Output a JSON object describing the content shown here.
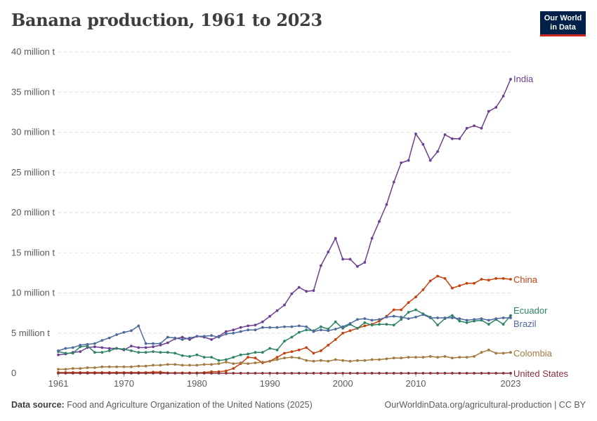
{
  "header": {
    "title": "Banana production, 1961 to 2023",
    "logo_line1": "Our World",
    "logo_line2": "in Data"
  },
  "footer": {
    "source_label": "Data source:",
    "source_text": "Food and Agriculture Organization of the United Nations (2025)",
    "url_text": "OurWorldinData.org/agricultural-production | CC BY"
  },
  "chart_data": {
    "type": "line",
    "title": "Banana production, 1961 to 2023",
    "xlim": [
      1961,
      2023
    ],
    "ylim": [
      0,
      40
    ],
    "y_unit": "million t",
    "y_ticks": [
      {
        "value": 0,
        "label": "0"
      },
      {
        "value": 5,
        "label": "5 million t"
      },
      {
        "value": 10,
        "label": "10 million t"
      },
      {
        "value": 15,
        "label": "15 million t"
      },
      {
        "value": 20,
        "label": "20 million t"
      },
      {
        "value": 25,
        "label": "25 million t"
      },
      {
        "value": 30,
        "label": "30 million t"
      },
      {
        "value": 35,
        "label": "35 million t"
      },
      {
        "value": 40,
        "label": "40 million t"
      }
    ],
    "x_ticks": [
      {
        "value": 1961,
        "label": "1961"
      },
      {
        "value": 1970,
        "label": "1970"
      },
      {
        "value": 1980,
        "label": "1980"
      },
      {
        "value": 1990,
        "label": "1990"
      },
      {
        "value": 2000,
        "label": "2000"
      },
      {
        "value": 2010,
        "label": "2010"
      },
      {
        "value": 2023,
        "label": "2023"
      }
    ],
    "grid": "horizontal dashed",
    "legend": "right, labels at line ends",
    "x_start": 1961,
    "series": [
      {
        "name": "India",
        "color": "#6d3e91",
        "values": [
          2.3,
          2.4,
          2.6,
          2.7,
          3.2,
          3.3,
          3.2,
          3.1,
          3.1,
          2.9,
          3.4,
          3.2,
          3.2,
          3.3,
          3.5,
          3.8,
          4.3,
          4.5,
          4.2,
          4.6,
          4.5,
          4.2,
          4.6,
          5.2,
          5.4,
          5.7,
          5.9,
          6.0,
          6.4,
          7.1,
          7.8,
          8.5,
          9.9,
          10.7,
          10.2,
          10.3,
          13.4,
          15.1,
          16.8,
          14.2,
          14.2,
          13.3,
          13.8,
          16.8,
          18.9,
          21.0,
          23.8,
          26.2,
          26.5,
          29.8,
          28.5,
          26.5,
          27.6,
          29.7,
          29.2,
          29.2,
          30.5,
          30.8,
          30.5,
          32.6,
          33.1,
          34.5,
          36.6
        ]
      },
      {
        "name": "China",
        "color": "#c4400c",
        "values": [
          0.1,
          0.1,
          0.1,
          0.1,
          0.1,
          0.1,
          0.1,
          0.1,
          0.1,
          0.1,
          0.1,
          0.1,
          0.1,
          0.15,
          0.15,
          0.05,
          0.05,
          0.05,
          0.05,
          0.05,
          0.1,
          0.2,
          0.2,
          0.3,
          0.6,
          1.2,
          2.0,
          1.9,
          1.3,
          1.5,
          2.0,
          2.5,
          2.7,
          2.9,
          3.2,
          2.5,
          2.8,
          3.5,
          4.2,
          5.0,
          5.3,
          5.6,
          5.9,
          6.1,
          6.5,
          7.1,
          7.9,
          7.9,
          8.8,
          9.5,
          10.4,
          11.5,
          12.1,
          11.8,
          10.6,
          10.9,
          11.2,
          11.2,
          11.7,
          11.6,
          11.8,
          11.8,
          11.7
        ]
      },
      {
        "name": "Ecuador",
        "color": "#2c8465",
        "values": [
          2.7,
          2.5,
          2.5,
          3.3,
          3.4,
          2.6,
          2.6,
          2.8,
          3.1,
          3.0,
          2.8,
          2.6,
          2.6,
          2.7,
          2.6,
          2.6,
          2.5,
          2.2,
          2.1,
          2.3,
          2.0,
          2.0,
          1.6,
          1.7,
          2.0,
          2.3,
          2.4,
          2.6,
          2.6,
          3.1,
          2.9,
          4.0,
          4.5,
          5.1,
          5.4,
          5.3,
          5.8,
          5.5,
          6.4,
          5.6,
          6.1,
          5.6,
          6.3,
          6.0,
          6.1,
          6.1,
          6.0,
          6.7,
          7.6,
          7.9,
          7.4,
          7.0,
          6.0,
          6.8,
          7.2,
          6.5,
          6.3,
          6.5,
          6.6,
          6.1,
          6.7,
          6.1,
          7.2
        ]
      },
      {
        "name": "Brazil",
        "color": "#4c6a9c",
        "values": [
          2.8,
          3.1,
          3.2,
          3.5,
          3.6,
          3.7,
          4.1,
          4.4,
          4.8,
          5.1,
          5.3,
          5.9,
          3.7,
          3.7,
          3.7,
          4.5,
          4.4,
          4.2,
          4.4,
          4.6,
          4.6,
          4.7,
          4.5,
          4.9,
          5.0,
          5.2,
          5.4,
          5.4,
          5.7,
          5.7,
          5.7,
          5.8,
          5.8,
          5.9,
          5.8,
          5.2,
          5.4,
          5.3,
          5.5,
          5.8,
          6.2,
          6.7,
          6.8,
          6.6,
          6.7,
          7.0,
          7.1,
          7.0,
          6.8,
          7.0,
          7.3,
          6.9,
          6.9,
          6.9,
          6.9,
          6.8,
          6.6,
          6.7,
          6.8,
          6.6,
          6.8,
          6.9,
          6.9
        ]
      },
      {
        "name": "Colombia",
        "color": "#a2793f",
        "values": [
          0.5,
          0.5,
          0.6,
          0.6,
          0.7,
          0.7,
          0.8,
          0.8,
          0.8,
          0.8,
          0.8,
          0.9,
          0.9,
          1.0,
          1.0,
          1.1,
          1.1,
          1.0,
          1.0,
          1.0,
          1.1,
          1.1,
          1.2,
          1.4,
          1.2,
          1.3,
          1.2,
          1.3,
          1.4,
          1.5,
          1.7,
          1.9,
          2.0,
          1.9,
          1.6,
          1.5,
          1.6,
          1.5,
          1.7,
          1.6,
          1.5,
          1.6,
          1.6,
          1.7,
          1.7,
          1.8,
          1.9,
          1.9,
          2.0,
          2.0,
          2.0,
          2.1,
          2.0,
          2.1,
          1.9,
          2.0,
          2.0,
          2.1,
          2.6,
          2.9,
          2.5,
          2.5,
          2.6
        ]
      },
      {
        "name": "United States",
        "color": "#883039",
        "values": [
          0.01,
          0.01,
          0.01,
          0.01,
          0.01,
          0.01,
          0.01,
          0.01,
          0.01,
          0.01,
          0.01,
          0.01,
          0.01,
          0.01,
          0.01,
          0.01,
          0.01,
          0.01,
          0.01,
          0.01,
          0.01,
          0.01,
          0.01,
          0.01,
          0.01,
          0.01,
          0.01,
          0.01,
          0.01,
          0.01,
          0.01,
          0.01,
          0.01,
          0.01,
          0.01,
          0.01,
          0.01,
          0.01,
          0.01,
          0.01,
          0.01,
          0.01,
          0.01,
          0.01,
          0.01,
          0.01,
          0.01,
          0.01,
          0.01,
          0.01,
          0.01,
          0.01,
          0.01,
          0.01,
          0.01,
          0.01,
          0.01,
          0.01,
          0.01,
          0.01,
          0.01,
          0.01,
          0.01
        ]
      }
    ]
  }
}
